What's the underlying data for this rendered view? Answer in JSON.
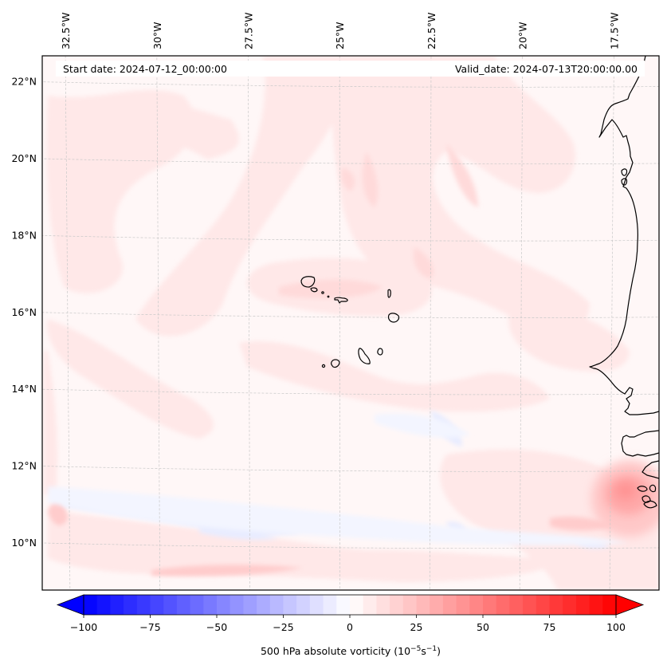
{
  "map": {
    "start_date_label": "Start date: 2024-07-12_00:00:00",
    "valid_date_label": "Valid_date: 2024-07-13T20:00:00.00",
    "extent": {
      "lon_min": -33.2,
      "lon_max": -16.2,
      "lat_min": 8.9,
      "lat_max": 22.8
    },
    "lon_ticks": [
      {
        "value": -32.5,
        "label": "32.5°W"
      },
      {
        "value": -30,
        "label": "30°W"
      },
      {
        "value": -27.5,
        "label": "27.5°W"
      },
      {
        "value": -25,
        "label": "25°W"
      },
      {
        "value": -22.5,
        "label": "22.5°W"
      },
      {
        "value": -20,
        "label": "20°W"
      },
      {
        "value": -17.5,
        "label": "17.5°W"
      }
    ],
    "lat_ticks": [
      {
        "value": 22,
        "label": "22°N"
      },
      {
        "value": 20,
        "label": "20°N"
      },
      {
        "value": 18,
        "label": "18°N"
      },
      {
        "value": 16,
        "label": "16°N"
      },
      {
        "value": 14,
        "label": "14°N"
      },
      {
        "value": 12,
        "label": "12°N"
      },
      {
        "value": 10,
        "label": "10°N"
      }
    ],
    "field_features": [
      {
        "name": "cape-verde-band",
        "value": 12,
        "desc": "weak positive vorticity band across Cape Verde islands"
      },
      {
        "name": "coastal-max",
        "value": 40,
        "desc": "positive vorticity maximum off Guinea-Bissau ~11°N 16.5°W"
      },
      {
        "name": "southern-streak",
        "value": 25,
        "desc": "zonal positive streak near 9.3°N"
      },
      {
        "name": "itcz-negative",
        "value": -15,
        "desc": "weak negative band near 11°N 32–22°W"
      }
    ]
  },
  "colorbar": {
    "label_main": "500 hPa absolute vorticity (10",
    "label_exp1": "−5",
    "label_mid": "s",
    "label_exp2": "−1",
    "label_end": ")",
    "min": -100,
    "max": 100,
    "step": 5,
    "extend": "both",
    "colormap": "bwr",
    "ticks": [
      {
        "value": -100,
        "label": "−100"
      },
      {
        "value": -75,
        "label": "−75"
      },
      {
        "value": -50,
        "label": "−50"
      },
      {
        "value": -25,
        "label": "−25"
      },
      {
        "value": 0,
        "label": "0"
      },
      {
        "value": 25,
        "label": "25"
      },
      {
        "value": 50,
        "label": "50"
      },
      {
        "value": 75,
        "label": "75"
      },
      {
        "value": 100,
        "label": "100"
      }
    ]
  },
  "colors": {
    "negative_end": "#0000ff",
    "positive_end": "#ff0000",
    "center": "#ffffff",
    "coastline": "#000000",
    "gridline": "#c8c8c8"
  }
}
